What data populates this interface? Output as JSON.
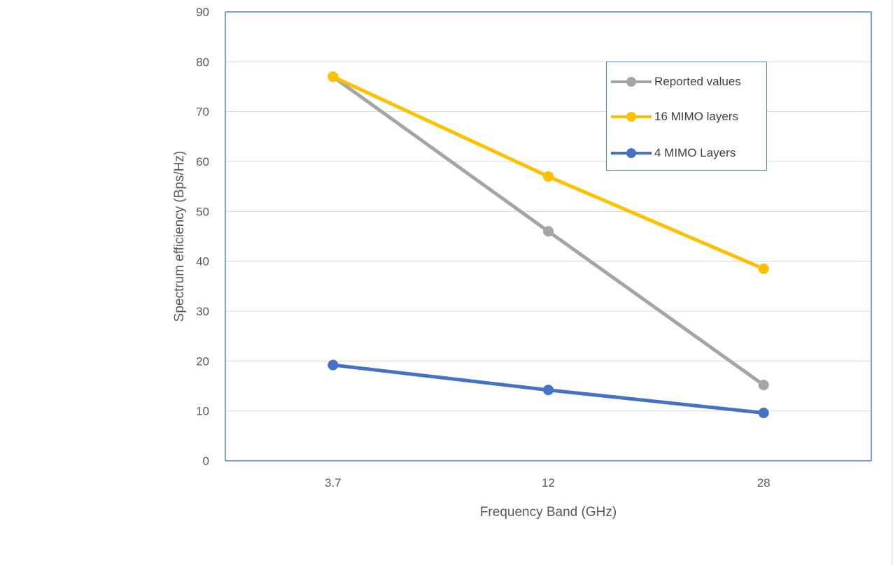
{
  "chart_data": {
    "type": "line",
    "categories": [
      "3.7",
      "12",
      "28"
    ],
    "series": [
      {
        "name": "Reported values",
        "values": [
          77,
          46,
          15.2
        ],
        "color": "#a5a5a5"
      },
      {
        "name": "16 MIMO layers",
        "values": [
          77,
          57,
          38.5
        ],
        "color": "#ffc000"
      },
      {
        "name": "4 MIMO Layers",
        "values": [
          19.2,
          14.2,
          9.6
        ],
        "color": "#4472c4"
      }
    ],
    "title": "",
    "xlabel": "Frequency Band (GHz)",
    "ylabel": "Spectrum efficiency (Bps/Hz)",
    "ylim": [
      0,
      90
    ],
    "yticks": [
      "0",
      "10",
      "20",
      "30",
      "40",
      "50",
      "60",
      "70",
      "80",
      "90"
    ],
    "grid": true,
    "legend_position": "top-right",
    "frame_color": "#4a86c5",
    "grid_color": "#d9d9d9"
  }
}
